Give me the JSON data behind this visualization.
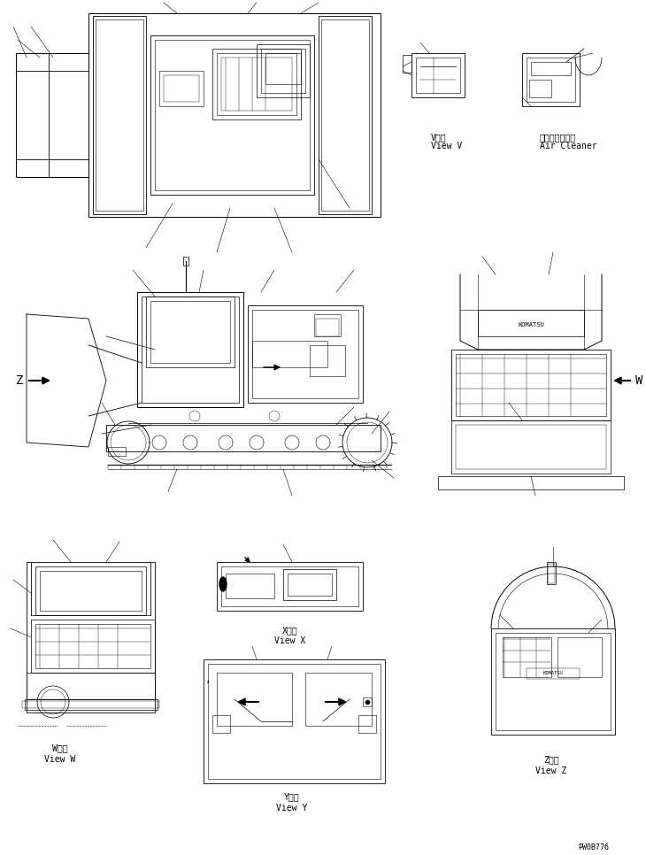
{
  "bg_color": "#ffffff",
  "line_color": "#000000",
  "fig_width": 7.3,
  "fig_height": 9.66,
  "dpi": 100,
  "labels": {
    "view_v_jp": "V　視",
    "view_v_en": "View V",
    "air_cleaner_jp": "エアークリーナ",
    "air_cleaner_en": "Air Cleaner",
    "view_w_jp": "W　視",
    "view_w_en": "View W",
    "view_x_jp": "X　視",
    "view_x_en": "View X",
    "view_y_jp": "Y　視",
    "view_y_en": "View Y",
    "view_z_jp": "Z　視",
    "view_z_en": "View Z",
    "arrow_z": "Z",
    "arrow_w": "W",
    "part_number": "PW0B776"
  },
  "font_size_label": 7,
  "font_size_partno": 6,
  "font_name": "monospace"
}
